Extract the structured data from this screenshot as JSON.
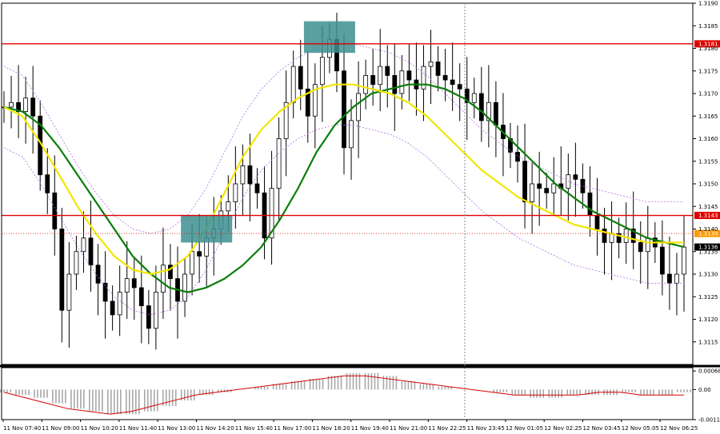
{
  "chart_data": [
    {
      "type": "candlestick",
      "name": "price",
      "ylim": [
        1.311,
        1.319
      ],
      "y_ticks": [
        "1.3115",
        "1.3120",
        "1.3125",
        "1.3130",
        "1.3135",
        "1.3140",
        "1.3145",
        "1.3150",
        "1.3155",
        "1.3160",
        "1.3165",
        "1.3170",
        "1.3175",
        "1.3180",
        "1.3185",
        "1.3190"
      ],
      "close": [
        1.3167,
        1.3168,
        1.3166,
        1.3169,
        1.3165,
        1.3152,
        1.3148,
        1.314,
        1.3122,
        1.313,
        1.3135,
        1.3138,
        1.3132,
        1.3128,
        1.3124,
        1.3121,
        1.3126,
        1.3129,
        1.3127,
        1.3123,
        1.3118,
        1.3126,
        1.3132,
        1.3129,
        1.3124,
        1.313,
        1.3135,
        1.3134,
        1.3138,
        1.314,
        1.3144,
        1.3146,
        1.315,
        1.3154,
        1.315,
        1.3148,
        1.3138,
        1.3149,
        1.316,
        1.3168,
        1.3176,
        1.3171,
        1.3165,
        1.3172,
        1.3178,
        1.3182,
        1.3175,
        1.3158,
        1.3164,
        1.317,
        1.3174,
        1.3172,
        1.3176,
        1.3174,
        1.317,
        1.3175,
        1.3173,
        1.3171,
        1.3176,
        1.3177,
        1.3174,
        1.3173,
        1.3172,
        1.3171,
        1.3168,
        1.317,
        1.3164,
        1.3168,
        1.3163,
        1.316,
        1.3157,
        1.3155,
        1.3146,
        1.315,
        1.3149,
        1.3148,
        1.315,
        1.3149,
        1.3152,
        1.3151,
        1.3148,
        1.3143,
        1.314,
        1.3137,
        1.3139,
        1.3137,
        1.314,
        1.3137,
        1.3135,
        1.3138,
        1.3136,
        1.313,
        1.3128,
        1.313,
        1.3136
      ],
      "resistance_levels": [
        "1.3181",
        "1.3143"
      ],
      "last_price": "1.3139",
      "current_price": "1.3136",
      "moving_averages": [
        {
          "color": "#0a7d0a",
          "values": [
            1.3167,
            1.3166,
            1.3163,
            1.3158,
            1.3152,
            1.3146,
            1.314,
            1.3134,
            1.313,
            1.3127,
            1.3126,
            1.3127,
            1.3129,
            1.3132,
            1.3136,
            1.3142,
            1.3149,
            1.3157,
            1.3163,
            1.3167,
            1.317,
            1.3171,
            1.3172,
            1.3172,
            1.3171,
            1.3169,
            1.3166,
            1.3162,
            1.3158,
            1.3154,
            1.315,
            1.3147,
            1.3144,
            1.3142,
            1.314,
            1.3138,
            1.3137,
            1.3136
          ]
        },
        {
          "color": "#f2e600",
          "values": [
            1.3167,
            1.3165,
            1.3159,
            1.3152,
            1.3145,
            1.3139,
            1.3134,
            1.3131,
            1.313,
            1.3131,
            1.3134,
            1.314,
            1.3148,
            1.3156,
            1.3162,
            1.3166,
            1.3169,
            1.3171,
            1.3172,
            1.3172,
            1.3171,
            1.317,
            1.3168,
            1.3165,
            1.3161,
            1.3157,
            1.3153,
            1.315,
            1.3147,
            1.3145,
            1.3143,
            1.3141,
            1.314,
            1.3139,
            1.3138,
            1.3137,
            1.3137,
            1.3137
          ]
        }
      ],
      "highlight_zones": [
        {
          "x_index": 45,
          "y_from": 1.3179,
          "y_to": 1.3186,
          "color": "#3d8f8f"
        },
        {
          "x_index": 28,
          "y_from": 1.3137,
          "y_to": 1.3143,
          "color": "#3d8f8f"
        }
      ]
    },
    {
      "type": "histogram",
      "name": "oscillator",
      "ylim": [
        -0.0011,
        0.0008
      ],
      "y_ticks": [
        "0.00068",
        "0.00",
        "-0.0011"
      ],
      "signal_color": "#d40000",
      "bars": [
        -0.0001,
        -0.0002,
        -0.0003,
        -0.0005,
        -0.0007,
        -0.0008,
        -0.0009,
        -0.0009,
        -0.0008,
        -0.0006,
        -0.0004,
        -0.0002,
        -0.0001,
        0.0,
        0.0001,
        0.0002,
        0.0003,
        0.0004,
        0.0005,
        0.0006,
        0.0006,
        0.0005,
        0.0003,
        0.0002,
        0.0001,
        0.0,
        0.0,
        -0.0001,
        -0.0002,
        -0.0003,
        -0.0003,
        -0.0002,
        -0.0002,
        -0.0002,
        -0.0001,
        -0.0002,
        -0.0002,
        -0.0001
      ],
      "signal": [
        -0.0001,
        -0.0003,
        -0.0005,
        -0.0007,
        -0.0008,
        -0.0009,
        -0.0008,
        -0.0006,
        -0.0004,
        -0.0002,
        -0.0001,
        0.0,
        0.0001,
        0.0002,
        0.0003,
        0.0004,
        0.0005,
        0.0005,
        0.0004,
        0.0003,
        0.0002,
        0.0001,
        0.0,
        -0.0001,
        -0.0002,
        -0.0002,
        -0.0002,
        -0.0002,
        -0.0001,
        -0.0001,
        -0.0002,
        -0.0002,
        -0.0002
      ]
    }
  ],
  "x_axis": {
    "labels": [
      "11 Nov 07:40",
      "11 Nov 09:00",
      "11 Nov 10:20",
      "11 Nov 11:40",
      "11 Nov 13:00",
      "11 Nov 14:20",
      "11 Nov 15:40",
      "11 Nov 17:00",
      "11 Nov 18:20",
      "11 Nov 19:40",
      "11 Nov 21:00",
      "11 Nov 22:25",
      "11 Nov 23:45",
      "12 Nov 01:05",
      "12 Nov 02:25",
      "12 Nov 03:45",
      "12 Nov 05:05",
      "12 Nov 06:25"
    ]
  }
}
